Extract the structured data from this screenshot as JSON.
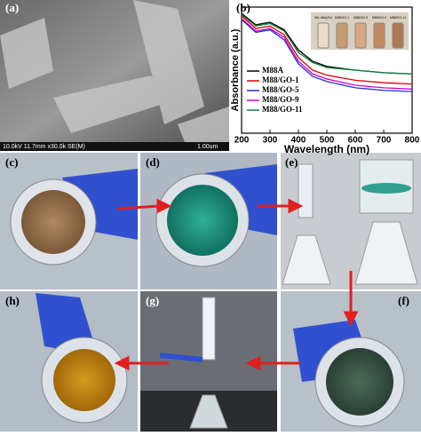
{
  "panels": {
    "a": "(a)",
    "b": "(b)",
    "c": "(c)",
    "d": "(d)",
    "e": "(e)",
    "f": "(f)",
    "g": "(g)",
    "h": "(h)"
  },
  "sem": {
    "info": "10.0kV 11.7mm x30.0k SE(M)",
    "scale": "1.00um"
  },
  "inset_labels": [
    "MIL-88A(Fe)",
    "M88/GO-1",
    "M88/GO-5",
    "M88/GO-9",
    "M88/GO-11"
  ],
  "chart_data": {
    "type": "line",
    "x_label": "Wavelength (nm)",
    "y_label": "Absorbance (a.u.)",
    "x": [
      200,
      250,
      300,
      350,
      400,
      450,
      500,
      600,
      700,
      800
    ],
    "xlim": [
      200,
      800
    ],
    "xticks": [
      200,
      300,
      400,
      500,
      600,
      700,
      800
    ],
    "ylim": [
      0,
      1
    ],
    "legend": "lower left",
    "series": [
      {
        "name": "M88A",
        "color": "#000000",
        "values": [
          0.95,
          0.86,
          0.88,
          0.82,
          0.66,
          0.57,
          0.53,
          0.5,
          0.48,
          0.47
        ]
      },
      {
        "name": "M88/GO-1",
        "color": "#e00000",
        "values": [
          0.93,
          0.83,
          0.85,
          0.78,
          0.6,
          0.5,
          0.46,
          0.42,
          0.4,
          0.39
        ]
      },
      {
        "name": "M88/GO-5",
        "color": "#2030d0",
        "values": [
          0.9,
          0.8,
          0.82,
          0.74,
          0.55,
          0.45,
          0.41,
          0.36,
          0.34,
          0.33
        ]
      },
      {
        "name": "M88/GO-9",
        "color": "#d000d0",
        "values": [
          0.91,
          0.81,
          0.83,
          0.76,
          0.57,
          0.47,
          0.43,
          0.38,
          0.36,
          0.35
        ]
      },
      {
        "name": "M88/GO-11",
        "color": "#108040",
        "values": [
          0.94,
          0.85,
          0.87,
          0.81,
          0.64,
          0.56,
          0.52,
          0.5,
          0.48,
          0.47
        ]
      }
    ]
  }
}
